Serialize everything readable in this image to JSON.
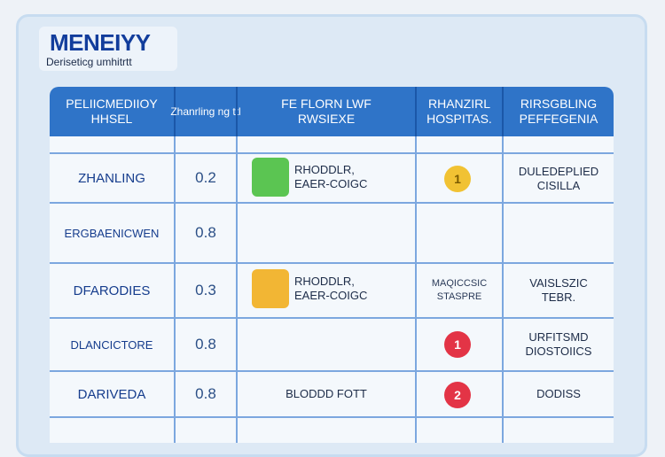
{
  "app": {
    "title": "MENEIYY",
    "subtitle": "Deriseticg umhitrtt"
  },
  "colors": {
    "header": "#2f74c8",
    "grid": "#7ca7df",
    "green": "#5bc552",
    "yellow": "#f1c233",
    "red": "#e33446",
    "amber": "#f2b634"
  },
  "table": {
    "columns": [
      {
        "line1": "PELIICMEDIIOY",
        "line2": "HHSEL"
      },
      {
        "line1": "Zhanrling ng ttl",
        "line2": ""
      },
      {
        "line1": "FE FLORN LWF",
        "line2": "RWSIEXE"
      },
      {
        "line1": "RHANZIRL",
        "line2": "HOSPITAS."
      },
      {
        "line1": "RIRSGBLING",
        "line2": "PEFFEGENIA"
      }
    ],
    "rows": [
      {
        "name": "ZHANLING",
        "score": "0.2",
        "status_line1": "RHODDLR,",
        "status_line2": "EAER-COIGC",
        "swatch": "green",
        "hospital_line1": "",
        "hospital_line2": "",
        "badge": "1",
        "badge_color": "yellow",
        "response_line1": "DULEDEPLIED",
        "response_line2": "CISILLA"
      },
      {
        "name": "ERGBAENICWEN",
        "score": "0.8",
        "status_line1": "",
        "status_line2": "",
        "swatch": "",
        "hospital_line1": "",
        "hospital_line2": "",
        "badge": "",
        "badge_color": "",
        "response_line1": "",
        "response_line2": ""
      },
      {
        "name": "DFARODIES",
        "score": "0.3",
        "status_line1": "RHODDLR,",
        "status_line2": "EAER-COIGC",
        "swatch": "amber",
        "hospital_line1": "MAQICCSIC",
        "hospital_line2": "STASPRE",
        "badge": "",
        "badge_color": "",
        "response_line1": "VAISLSZIC",
        "response_line2": "TEBR."
      },
      {
        "name": "DLANCICTORE",
        "score": "0.8",
        "status_line1": "",
        "status_line2": "",
        "swatch": "",
        "hospital_line1": "",
        "hospital_line2": "",
        "badge": "1",
        "badge_color": "red",
        "response_line1": "URFITSMD",
        "response_line2": "DIOSTOIICS"
      },
      {
        "name": "DARIVEDA",
        "score": "0.8",
        "status_line1": "BLODDD FOTT",
        "status_line2": "",
        "swatch": "",
        "hospital_line1": "",
        "hospital_line2": "",
        "badge": "2",
        "badge_color": "red",
        "response_line1": "DODISS",
        "response_line2": ""
      }
    ]
  }
}
